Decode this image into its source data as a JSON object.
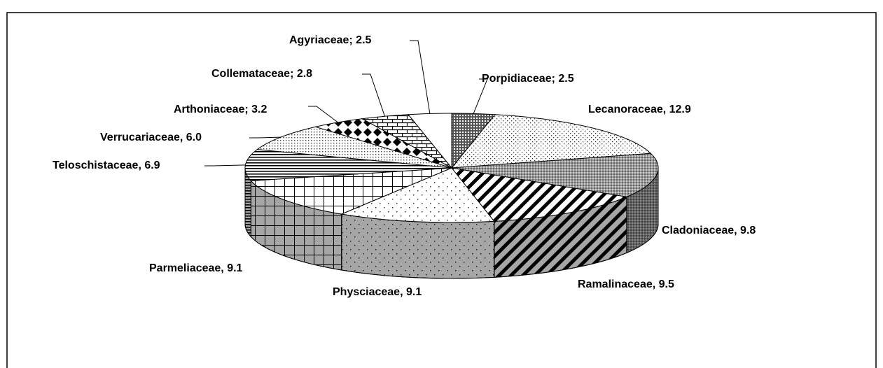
{
  "chart_data": {
    "type": "pie3d",
    "values": [
      2.5,
      12.9,
      9.8,
      9.5,
      9.1,
      9.1,
      6.9,
      6.0,
      3.2,
      2.8,
      2.5
    ],
    "value_labels": [
      "Porpidiaceae; 2.5",
      "Lecanoraceae, 12.9",
      "Cladoniaceae, 9.8",
      "Ramalinaceae, 9.5",
      "Physciaceae, 9.1",
      "Parmeliaceae, 9.1",
      "Teloschistaceae, 6.9",
      "Verrucariaceae, 6.0",
      "Arthoniaceae; 3.2",
      "Collemataceae; 2.8",
      "Agyriaceae; 2.5"
    ],
    "patterns": [
      "darkdots",
      "dots",
      "hatch",
      "diag",
      "sparsedots",
      "grid",
      "hlines",
      "finedots",
      "diamonds",
      "bricks",
      "white"
    ]
  }
}
